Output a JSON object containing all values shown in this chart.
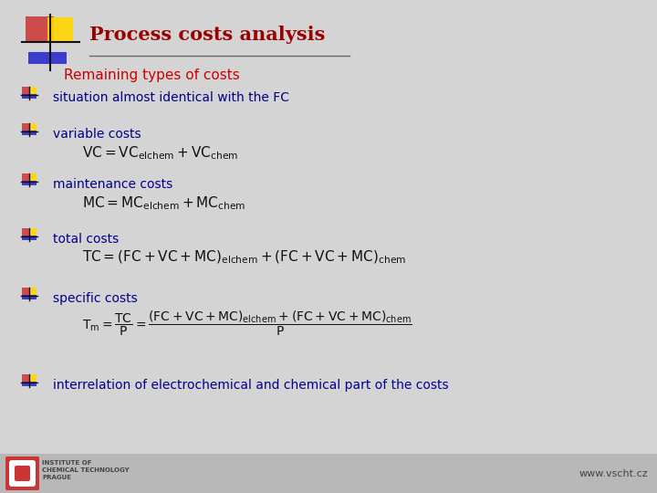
{
  "bg_color": "#d4d4d4",
  "footer_bar_color": "#b8b8b8",
  "title": "Process costs analysis",
  "title_color": "#990000",
  "title_fontsize": 15,
  "subtitle": "Remaining types of costs",
  "subtitle_color": "#cc0000",
  "subtitle_fontsize": 11,
  "bullet_items": [
    "situation almost identical with the FC",
    "variable costs",
    "maintenance costs",
    "total costs",
    "specific costs",
    "interrelation of electrochemical and chemical part of the costs"
  ],
  "item_color": "#00008B",
  "item_fontsize": 10,
  "formula_color": "#111111",
  "formula_fontsize": 10,
  "website": "www.vscht.cz",
  "footer_text_color": "#444444",
  "logo_red": "#cc3333",
  "logo_yellow": "#FFD700",
  "logo_blue": "#2222cc"
}
